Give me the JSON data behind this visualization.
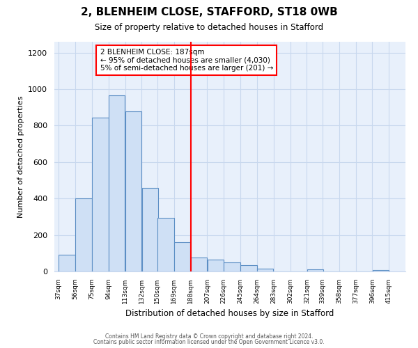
{
  "title_line1": "2, BLENHEIM CLOSE, STAFFORD, ST18 0WB",
  "title_line2": "Size of property relative to detached houses in Stafford",
  "xlabel": "Distribution of detached houses by size in Stafford",
  "ylabel": "Number of detached properties",
  "bar_left_edges": [
    37,
    56,
    75,
    94,
    113,
    132,
    150,
    169,
    188,
    207,
    226,
    245,
    264,
    283,
    302,
    321,
    339,
    358,
    377,
    396
  ],
  "bar_widths": [
    19,
    19,
    19,
    19,
    19,
    19,
    19,
    19,
    19,
    19,
    19,
    19,
    19,
    19,
    19,
    19,
    19,
    19,
    19,
    19
  ],
  "bar_heights": [
    90,
    400,
    845,
    965,
    880,
    460,
    295,
    160,
    75,
    65,
    50,
    35,
    15,
    0,
    0,
    10,
    0,
    0,
    0,
    8
  ],
  "bar_color": "#cfe0f5",
  "bar_edge_color": "#5b8ec4",
  "tick_labels": [
    "37sqm",
    "56sqm",
    "75sqm",
    "94sqm",
    "113sqm",
    "132sqm",
    "150sqm",
    "169sqm",
    "188sqm",
    "207sqm",
    "226sqm",
    "245sqm",
    "264sqm",
    "283sqm",
    "302sqm",
    "321sqm",
    "339sqm",
    "358sqm",
    "377sqm",
    "396sqm",
    "415sqm"
  ],
  "vline_x": 188,
  "vline_color": "red",
  "ylim": [
    0,
    1260
  ],
  "yticks": [
    0,
    200,
    400,
    600,
    800,
    1000,
    1200
  ],
  "annotation_title": "2 BLENHEIM CLOSE: 187sqm",
  "annotation_line2": "← 95% of detached houses are smaller (4,030)",
  "annotation_line3": "5% of semi-detached houses are larger (201) →",
  "footer_line1": "Contains HM Land Registry data © Crown copyright and database right 2024.",
  "footer_line2": "Contains public sector information licensed under the Open Government Licence v3.0.",
  "bg_color": "#ffffff",
  "plot_bg_color": "#e8f0fb",
  "grid_color": "#c8d8ee"
}
